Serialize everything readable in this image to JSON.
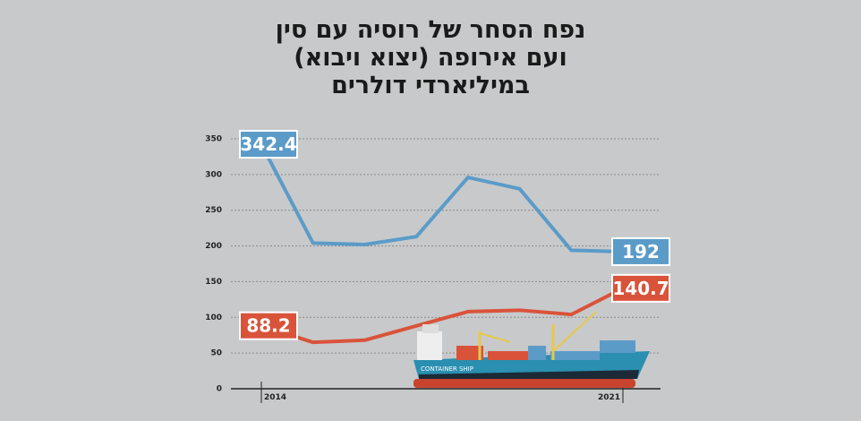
{
  "chart_data": {
    "type": "line",
    "title": [
      "נפח הסחר של רוסיה עם סין",
      "ועם אירופה (יצוא ויבוא)",
      "במיליארדי דולרים"
    ],
    "categories": [
      "2014",
      null,
      null,
      null,
      null,
      null,
      null,
      "2021"
    ],
    "series": [
      {
        "color": "#5b9bc8",
        "values": [
          342.4,
          204,
          202,
          213,
          296,
          280,
          194,
          192
        ]
      },
      {
        "color": "#d9533a",
        "values": [
          88.2,
          65,
          68,
          88,
          108,
          110,
          104,
          140.7
        ]
      }
    ],
    "ylim": [
      0,
      350
    ],
    "yticks": [
      0,
      50,
      100,
      150,
      200,
      250,
      300,
      350
    ],
    "grid": true,
    "annotations": [
      "CONTAINER SHIP"
    ]
  }
}
